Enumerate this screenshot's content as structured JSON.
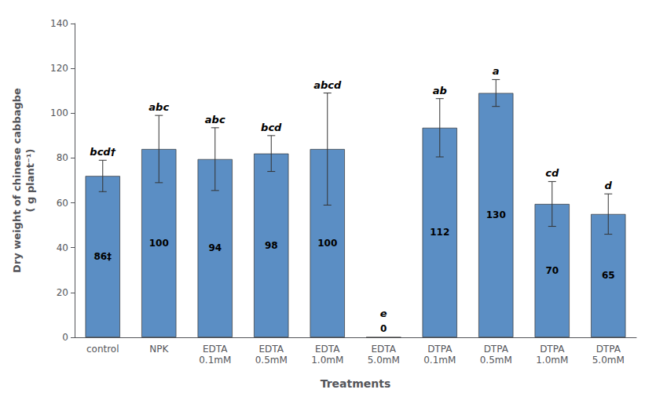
{
  "chart_data": {
    "type": "bar",
    "categories": [
      "control",
      "NPK",
      "EDTA\n0.1mM",
      "EDTA\n0.5mM",
      "EDTA\n1.0mM",
      "EDTA\n5.0mM",
      "DTPA\n0.1mM",
      "DTPA\n0.5mM",
      "DTPA\n1.0mM",
      "DTPA\n5.0mM"
    ],
    "values": [
      72,
      84,
      79.5,
      82,
      84,
      0,
      93.5,
      109,
      59.5,
      55
    ],
    "errors": [
      7,
      15,
      14,
      8,
      25,
      0,
      13,
      6,
      10,
      9
    ],
    "annotations": {
      "inside": [
        "86‡",
        "100",
        "94",
        "98",
        "100",
        "0",
        "112",
        "130",
        "70",
        "65"
      ],
      "above": [
        "bcd†",
        "abc",
        "abc",
        "bcd",
        "abcd",
        "e",
        "ab",
        "a",
        "cd",
        "d"
      ]
    },
    "color": "#5b8ec4",
    "xlabel": "Treatments",
    "ylabel": "Dry weight of chinese cabbagbe\n( g plant⁻¹)",
    "ylim": [
      0,
      140
    ],
    "yticks": [
      0,
      20,
      40,
      60,
      80,
      100,
      120,
      140
    ],
    "grid": false
  }
}
